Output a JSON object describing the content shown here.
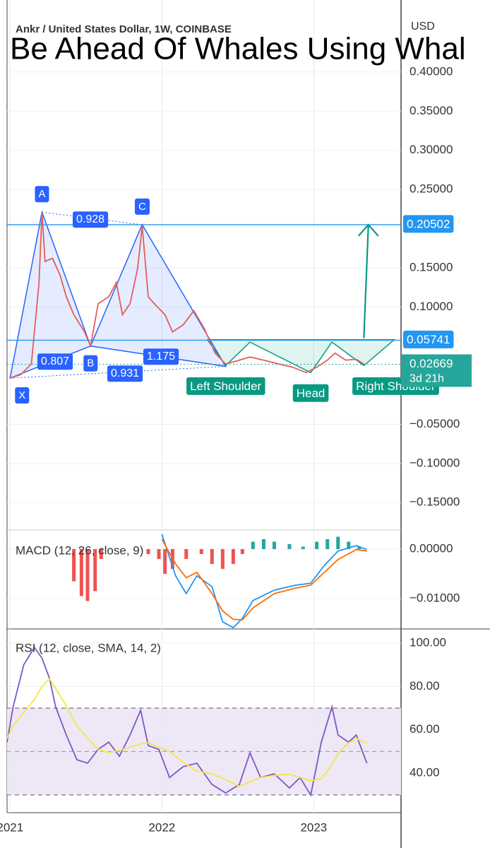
{
  "chart_data": [
    {
      "type": "line",
      "title": "Ankr / United States Dollar, 1W, COINBASE",
      "overlay_text": "Be Ahead Of Whales Using Whal",
      "unit": "USD",
      "x": [
        2021.0,
        2021.07,
        2021.14,
        2021.19,
        2021.21,
        2021.23,
        2021.28,
        2021.33,
        2021.37,
        2021.42,
        2021.49,
        2021.53,
        2021.58,
        2021.65,
        2021.7,
        2021.74,
        2021.79,
        2021.84,
        2021.87,
        2021.91,
        2021.95,
        2022.02,
        2022.07,
        2022.14,
        2022.21,
        2022.28,
        2022.35,
        2022.42,
        2022.51,
        2022.58,
        2022.67,
        2022.77,
        2022.86,
        2022.95,
        2023.02,
        2023.09,
        2023.14,
        2023.21,
        2023.28,
        2023.33
      ],
      "values": [
        0.009,
        0.0135,
        0.027,
        0.13,
        0.22,
        0.158,
        0.162,
        0.14,
        0.113,
        0.09,
        0.068,
        0.05,
        0.104,
        0.113,
        0.131,
        0.09,
        0.104,
        0.149,
        0.203,
        0.113,
        0.104,
        0.09,
        0.068,
        0.077,
        0.095,
        0.072,
        0.041,
        0.027,
        0.032,
        0.036,
        0.032,
        0.027,
        0.023,
        0.016,
        0.023,
        0.032,
        0.041,
        0.032,
        0.033,
        0.027
      ],
      "color": "#e35d5b",
      "xlim": [
        2020.98,
        2023.575
      ],
      "ylim": [
        -0.185,
        0.492
      ],
      "yticks": [
        {
          "value": 0.4,
          "label": "0.40000"
        },
        {
          "value": 0.35,
          "label": "0.35000"
        },
        {
          "value": 0.3,
          "label": "0.30000"
        },
        {
          "value": 0.25,
          "label": "0.25000"
        },
        {
          "value": 0.15,
          "label": "0.15000"
        },
        {
          "value": 0.1,
          "label": "0.10000"
        },
        {
          "value": -0.05,
          "label": "−0.05000"
        },
        {
          "value": -0.1,
          "label": "−0.10000"
        },
        {
          "value": -0.15,
          "label": "−0.15000"
        }
      ],
      "levels": [
        {
          "value": 0.20502,
          "label": "0.20502",
          "color": "#2196f3"
        },
        {
          "value": 0.05741,
          "label": "0.05741",
          "color": "#2196f3"
        }
      ],
      "last_price": {
        "value": 0.02669,
        "label": "0.02669",
        "countdown": "3d 21h",
        "color": "#26a69a"
      },
      "xabcd": {
        "color": "#2962ff",
        "points": [
          {
            "label": "X",
            "x": 2021.0,
            "y": 0.009
          },
          {
            "label": "A",
            "x": 2021.21,
            "y": 0.221
          },
          {
            "label": "B",
            "x": 2021.53,
            "y": 0.05
          },
          {
            "label": "C",
            "x": 2021.87,
            "y": 0.205
          },
          {
            "x": 2022.42,
            "y": 0.024
          }
        ],
        "ratios": [
          "0.807",
          "0.928",
          "0.931",
          "1.175"
        ]
      },
      "head_shoulders": {
        "color": "#089981",
        "points": [
          {
            "x": 2022.3,
            "y": 0.058
          },
          {
            "x": 2022.42,
            "y": 0.025,
            "label": "Left Shoulder"
          },
          {
            "x": 2022.58,
            "y": 0.055
          },
          {
            "x": 2022.98,
            "y": 0.016,
            "label": "Head"
          },
          {
            "x": 2023.12,
            "y": 0.055
          },
          {
            "x": 2023.33,
            "y": 0.025,
            "label": "Right Shoulder"
          },
          {
            "x": 2023.53,
            "y": 0.058
          }
        ],
        "arrow": {
          "x": [
            2023.33,
            2023.36
          ],
          "y": [
            0.06,
            0.205
          ]
        }
      }
    },
    {
      "type": "line",
      "title": "MACD (12, 26, close, 9)",
      "x": [
        2022.0,
        2022.09,
        2022.16,
        2022.23,
        2022.33,
        2022.4,
        2022.47,
        2022.53,
        2022.6,
        2022.74,
        2022.88,
        2022.98,
        2023.07,
        2023.16,
        2023.28,
        2023.35
      ],
      "series": [
        {
          "color": "#2196f3",
          "values": [
            0.003,
            -0.0054,
            -0.009,
            -0.0054,
            -0.0076,
            -0.0147,
            -0.0159,
            -0.014,
            -0.0104,
            -0.0083,
            -0.0073,
            -0.0069,
            -0.0033,
            -0.0004,
            0.0007,
            -0.0001
          ]
        },
        {
          "color": "#ff6d00",
          "values": [
            0.002,
            -0.003,
            -0.0058,
            -0.0047,
            -0.009,
            -0.0125,
            -0.0142,
            -0.0143,
            -0.0119,
            -0.009,
            -0.0079,
            -0.0073,
            -0.0047,
            -0.0021,
            -0.0001,
            -0.0004
          ]
        }
      ],
      "histogram": {
        "positive_color": "#26a69a",
        "negative_color": "#ef5350",
        "x": [
          2021.42,
          2021.47,
          2021.51,
          2021.56,
          2021.6,
          2021.91,
          2021.98,
          2022.02,
          2022.07,
          2022.16,
          2022.26,
          2022.33,
          2022.4,
          2022.47,
          2022.53,
          2022.6,
          2022.67,
          2022.74,
          2022.84,
          2022.93,
          2023.02,
          2023.09,
          2023.16,
          2023.23,
          2023.3
        ],
        "values": [
          -0.0065,
          -0.0095,
          -0.0105,
          -0.0085,
          -0.002,
          -0.001,
          -0.002,
          -0.005,
          -0.004,
          -0.002,
          -0.001,
          -0.003,
          -0.004,
          -0.003,
          -0.001,
          0.0015,
          0.002,
          0.0015,
          0.001,
          0.0005,
          0.0015,
          0.002,
          0.0025,
          0.0015,
          0.0005
        ]
      },
      "xlim": [
        2020.98,
        2023.575
      ],
      "ylim": [
        -0.01614,
        0.00386
      ],
      "yticks": [
        {
          "value": 0,
          "label": "0.00000"
        },
        {
          "value": -0.01,
          "label": "−0.01000"
        }
      ]
    },
    {
      "type": "line",
      "title": "RSI (12, close, SMA, 14, 2)",
      "x": [
        2020.98,
        2021.02,
        2021.09,
        2021.16,
        2021.21,
        2021.26,
        2021.3,
        2021.37,
        2021.44,
        2021.51,
        2021.58,
        2021.65,
        2021.72,
        2021.79,
        2021.86,
        2021.91,
        2021.98,
        2022.05,
        2022.14,
        2022.23,
        2022.33,
        2022.42,
        2022.51,
        2022.58,
        2022.65,
        2022.74,
        2022.84,
        2022.91,
        2022.98,
        2023.05,
        2023.12,
        2023.16,
        2023.23,
        2023.28,
        2023.35
      ],
      "series": [
        {
          "color": "#7e57c2",
          "values": [
            54.3,
            70.6,
            90,
            98,
            93,
            83.6,
            70.6,
            57.6,
            46.2,
            44.6,
            51,
            54.3,
            47.8,
            57.6,
            69,
            52.7,
            51,
            38,
            43,
            44.6,
            34.8,
            30.9,
            34.8,
            49.4,
            38,
            39.7,
            33.2,
            38,
            29.9,
            54.3,
            70.6,
            57.6,
            54.3,
            57.6,
            44.6
          ]
        },
        {
          "color": "#f5e642",
          "values": [
            56,
            62,
            68,
            74,
            80,
            83.5,
            79,
            71,
            62,
            56,
            51,
            49.5,
            50.5,
            52,
            53.5,
            54,
            52,
            50,
            45,
            41,
            39.7,
            37,
            34,
            36,
            38,
            39,
            39.5,
            38,
            36.5,
            37.5,
            44,
            49,
            54,
            56,
            53.7
          ]
        }
      ],
      "band": [
        30,
        70
      ],
      "midline": 50,
      "band_color": "#ede7f6",
      "xlim": [
        2020.98,
        2023.575
      ],
      "ylim": [
        21.8,
        106.5
      ],
      "yticks": [
        {
          "value": 100,
          "label": "100.00"
        },
        {
          "value": 80,
          "label": "80.00"
        },
        {
          "value": 60,
          "label": "60.00"
        },
        {
          "value": 40,
          "label": "40.00"
        }
      ],
      "xticks": [
        2021,
        2022,
        2023
      ]
    }
  ]
}
